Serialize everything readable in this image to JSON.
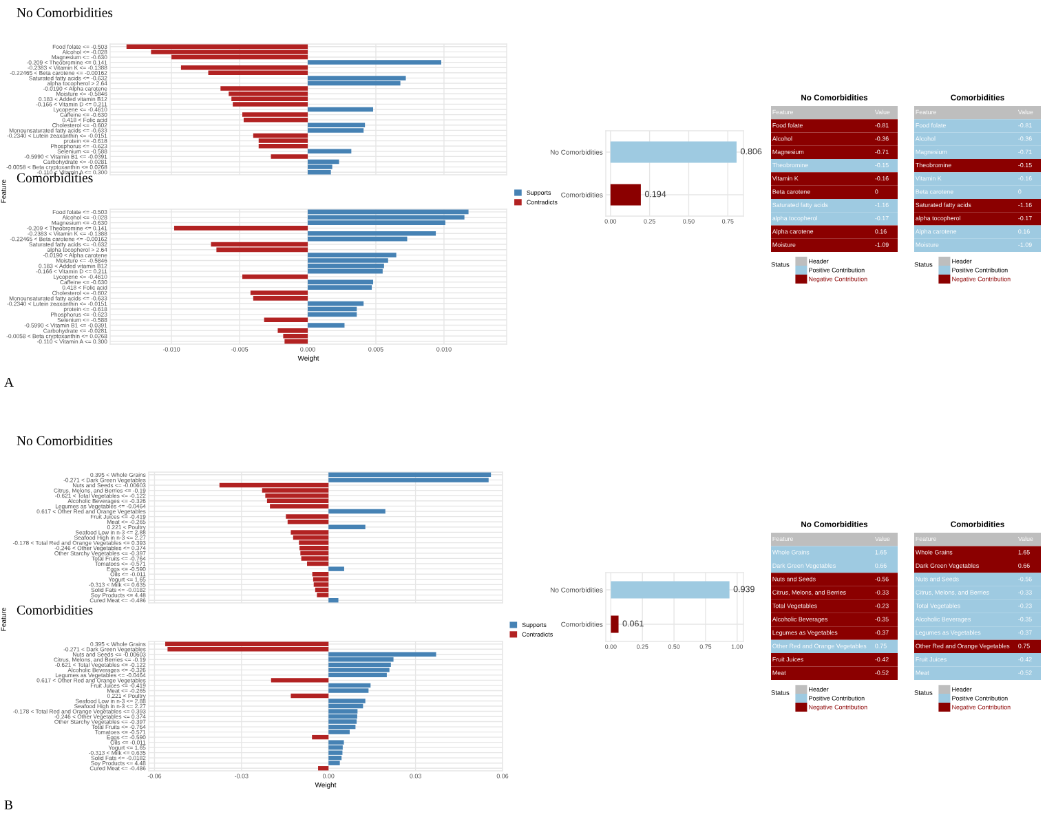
{
  "chart_data": [
    {
      "type": "bar",
      "orientation": "horizontal",
      "title": "No Comorbidities",
      "ylabel": "Feature",
      "tick_labels": "y",
      "grid": true,
      "categories": [
        "Food folate <= -0.503",
        "Alcohol <= -0.028",
        "Magnesium <= -0.630",
        "-0.209 < Theobromine <= 0.141",
        "-0.2383 < Vitamin K <= -0.1388",
        "-0.22465 < Beta carotene <= -0.00162",
        "Saturated fatty acids <= -0.632",
        "alpha tocopherol > 2.64",
        "-0.0190 < Alpha carotene",
        "Moisture <= -0.5846",
        "0.183 < Added vitamin B12",
        "-0.166 < Vitamin D <= 0.211",
        "Lycopene <= -0.4610",
        "Caffeine <= -0.630",
        "0.418 < Folic acid",
        "Cholesterol <= -0.602",
        "Monounsaturated fatty acids <= -0.633",
        "-0.2340 < Lutein zeaxanthin <= -0.0151",
        "protein <= -0.618",
        "Phosphorus <= -0.623",
        "Selenium <= -0.588",
        "-0.5990 < Vitamin B1 <= -0.0391",
        "Carbohydrate <= -0.0281",
        "-0.0058 < Beta cryptoxanthin <= 0.0268",
        "-0.110 < Vitamin A <= 0.300"
      ],
      "values": [
        -0.0133,
        -0.0115,
        -0.01,
        0.0098,
        -0.0093,
        -0.0073,
        0.0072,
        0.0068,
        -0.0064,
        -0.0058,
        -0.0056,
        -0.0055,
        0.0048,
        -0.0048,
        -0.0047,
        0.0042,
        0.0041,
        -0.004,
        -0.0036,
        -0.0036,
        0.0032,
        -0.0027,
        0.0023,
        0.0018,
        0.0017
      ],
      "colors": [
        "#b22222",
        "#b22222",
        "#b22222",
        "#4682b4",
        "#b22222",
        "#b22222",
        "#4682b4",
        "#4682b4",
        "#b22222",
        "#b22222",
        "#b22222",
        "#b22222",
        "#4682b4",
        "#b22222",
        "#b22222",
        "#4682b4",
        "#4682b4",
        "#b22222",
        "#b22222",
        "#b22222",
        "#4682b4",
        "#b22222",
        "#4682b4",
        "#4682b4",
        "#4682b4"
      ],
      "xlim": [
        -0.0145,
        0.0146
      ],
      "xticks": [
        -0.01,
        -0.005,
        0,
        0.005,
        0.01
      ]
    },
    {
      "type": "bar",
      "orientation": "horizontal",
      "title": "Comorbidities",
      "xlabel": "Weight",
      "grid": true,
      "legend": "right",
      "annotations": [
        "A"
      ],
      "categories": [
        "Food folate <= -0.503",
        "Alcohol <= -0.028",
        "Magnesium <= -0.630",
        "-0.209 < Theobromine <= 0.141",
        "-0.2383 < Vitamin K <= -0.1388",
        "-0.22465 < Beta carotene <= -0.00162",
        "Saturated fatty acids <= -0.632",
        "alpha tocopherol > 2.64",
        "-0.0190 < Alpha carotene",
        "Moisture <= -0.5846",
        "0.183 < Added vitamin B12",
        "-0.166 < Vitamin D <= 0.211",
        "Lycopene <= -0.4610",
        "Caffeine <= -0.630",
        "0.418 < Folic acid",
        "Cholesterol <= -0.602",
        "Monounsaturated fatty acids <= -0.633",
        "-0.2340 < Lutein zeaxanthin <= -0.0151",
        "protein <= -0.618",
        "Phosphorus <= -0.623",
        "Selenium <= -0.588",
        "-0.5990 < Vitamin B1 <= -0.0391",
        "Carbohydrate <= -0.0281",
        "-0.0058 < Beta cryptoxanthin <= 0.0268",
        "-0.110 < Vitamin A <= 0.300"
      ],
      "series": [
        {
          "name": "Supports",
          "color": "#4682b4",
          "values": [
            0.0118,
            0.0115,
            0.0101,
            null,
            0.0094,
            0.0073,
            null,
            null,
            0.0065,
            0.0059,
            0.0056,
            0.0055,
            null,
            0.0048,
            0.0047,
            null,
            null,
            0.0041,
            0.0036,
            0.0036,
            null,
            0.0027,
            null,
            null,
            null
          ]
        },
        {
          "name": "Contradicts",
          "color": "#b22222",
          "values": [
            null,
            null,
            null,
            -0.0098,
            null,
            null,
            -0.0071,
            -0.0067,
            null,
            null,
            null,
            null,
            -0.0048,
            null,
            null,
            -0.0042,
            -0.004,
            null,
            null,
            null,
            -0.0032,
            null,
            -0.0022,
            -0.0018,
            -0.0017
          ]
        }
      ],
      "xlim": [
        -0.0145,
        0.0146
      ],
      "xticks": [
        {
          "value": -0.01,
          "label": "-0.010"
        },
        {
          "value": -0.005,
          "label": "-0.005"
        },
        {
          "value": 0,
          "label": "0.000"
        },
        {
          "value": 0.005,
          "label": "0.005"
        },
        {
          "value": 0.01,
          "label": "0.010"
        }
      ]
    },
    {
      "type": "bar",
      "orientation": "horizontal",
      "grid": true,
      "data_labels": true,
      "categories": [
        "No Comorbidities",
        "Comorbidities"
      ],
      "values": [
        0.806,
        0.194
      ],
      "colors": [
        "#9ecae1",
        "#8b0000"
      ],
      "xlim": [
        -0.03,
        0.85
      ],
      "xticks": [
        {
          "value": 0,
          "label": "0.00"
        },
        {
          "value": 0.25,
          "label": "0.25"
        },
        {
          "value": 0.5,
          "label": "0.50"
        },
        {
          "value": 0.75,
          "label": "0.75"
        }
      ]
    },
    {
      "type": "other",
      "title": "No Comorbidities",
      "annotations": [
        "Feature",
        "Value"
      ],
      "legend": "bottom",
      "legend_title": "Status",
      "categories": [
        "Food folate",
        "Alcohol",
        "Magnesium",
        "Theobromine",
        "Vitamin K",
        "Beta carotene",
        "Saturated fatty acids",
        "alpha tocopherol",
        "Alpha carotene",
        "Moisture"
      ],
      "data_labels": true,
      "series": [
        {
          "name": "Header",
          "color": "#bebebe",
          "values": [
            null,
            null,
            null,
            null,
            null,
            null,
            null,
            null,
            null,
            null
          ]
        },
        {
          "name": "Positive Contribution",
          "color": "#9ecae1",
          "values": [
            null,
            null,
            null,
            -0.15,
            null,
            null,
            -1.16,
            -0.17,
            null,
            null
          ]
        },
        {
          "name": "Negative Contribution",
          "color": "#8b0000",
          "values": [
            -0.81,
            -0.36,
            -0.71,
            null,
            -0.16,
            0,
            null,
            null,
            0.16,
            -1.09
          ]
        }
      ]
    },
    {
      "type": "other",
      "title": "Comorbidities",
      "annotations": [
        "Feature",
        "Value"
      ],
      "legend": "bottom",
      "legend_title": "Status",
      "categories": [
        "Food folate",
        "Alcohol",
        "Magnesium",
        "Theobromine",
        "Vitamin K",
        "Beta carotene",
        "Saturated fatty acids",
        "alpha tocopherol",
        "Alpha carotene",
        "Moisture"
      ],
      "data_labels": true,
      "series": [
        {
          "name": "Header",
          "color": "#bebebe",
          "values": [
            null,
            null,
            null,
            null,
            null,
            null,
            null,
            null,
            null,
            null
          ]
        },
        {
          "name": "Positive Contribution",
          "color": "#9ecae1",
          "values": [
            -0.81,
            -0.36,
            -0.71,
            null,
            -0.16,
            0,
            null,
            null,
            0.16,
            -1.09
          ]
        },
        {
          "name": "Negative Contribution",
          "color": "#8b0000",
          "values": [
            null,
            null,
            null,
            -0.15,
            null,
            null,
            -1.16,
            -0.17,
            null,
            null
          ]
        }
      ]
    },
    {
      "type": "bar",
      "orientation": "horizontal",
      "title": "No Comorbidities",
      "ylabel": "Feature",
      "tick_labels": "y",
      "grid": true,
      "categories": [
        "0.395 < Whole Grains",
        "-0.271 < Dark Green Vegetables",
        "Nuts and Seeds <= -0.00603",
        "Citrus, Melons, and Berries <= -0.19",
        "-0.621 < Total Vegetables <= -0.122",
        "Alcoholic Beverages <= -0.326",
        "Legumes as Vegetables <= -0.0464",
        "0.617 < Other Red and Orange Vegetables",
        "Fruit Juices <= -0.419",
        "Meat <= -0.265",
        "0.221 < Poultry",
        "Seafood Low in n-3 <= 2.88",
        "Seafood High in n-3 <= 2.27",
        "-0.178 < Total Red and Orange Vegetables <= 0.393",
        "-0.246 < Other Vegetables <= 0.374",
        "Other Starchy Vegetables <= -0.397",
        "Total Fruits <= -0.764",
        "Tomatoes <= -0.571",
        "Eggs <= -0.590",
        "Oils <= -0.011",
        "Yogurt <= 1.65",
        "-0.313 < Milk <= 0.635",
        "Solid Fats <= -0.0182",
        "Soy Products <= 4.48",
        "Cured Meat <= -0.486"
      ],
      "values": [
        0.056,
        0.0552,
        -0.0376,
        -0.0229,
        -0.0218,
        -0.0212,
        -0.0202,
        0.0196,
        -0.0147,
        -0.0141,
        0.0127,
        -0.013,
        -0.0122,
        -0.0102,
        -0.01,
        -0.0097,
        -0.0094,
        -0.0074,
        0.0054,
        -0.0056,
        -0.0053,
        -0.0051,
        -0.0046,
        -0.004,
        0.0034
      ],
      "colors": [
        "#4682b4",
        "#4682b4",
        "#b22222",
        "#b22222",
        "#b22222",
        "#b22222",
        "#b22222",
        "#4682b4",
        "#b22222",
        "#b22222",
        "#4682b4",
        "#b22222",
        "#b22222",
        "#b22222",
        "#b22222",
        "#b22222",
        "#b22222",
        "#b22222",
        "#4682b4",
        "#b22222",
        "#b22222",
        "#b22222",
        "#b22222",
        "#b22222",
        "#4682b4"
      ],
      "xlim": [
        -0.062,
        0.06
      ],
      "xticks": [
        -0.06,
        -0.03,
        0,
        0.03,
        0.06
      ]
    },
    {
      "type": "bar",
      "orientation": "horizontal",
      "title": "Comorbidities",
      "xlabel": "Weight",
      "grid": true,
      "legend": "right",
      "annotations": [
        "B"
      ],
      "categories": [
        "0.395 < Whole Grains",
        "-0.271 < Dark Green Vegetables",
        "Nuts and Seeds <= -0.00603",
        "Citrus, Melons, and Berries <= -0.19",
        "-0.621 < Total Vegetables <= -0.122",
        "Alcoholic Beverages <= -0.326",
        "Legumes as Vegetables <= -0.0464",
        "0.617 < Other Red and Orange Vegetables",
        "Fruit Juices <= -0.419",
        "Meat <= -0.265",
        "0.221 < Poultry",
        "Seafood Low in n-3 <= 2.88",
        "Seafood High in n-3 <= 2.27",
        "-0.178 < Total Red and Orange Vegetables <= 0.393",
        "-0.246 < Other Vegetables <= 0.374",
        "Other Starchy Vegetables <= -0.397",
        "Total Fruits <= -0.764",
        "Tomatoes <= -0.571",
        "Eggs <= -0.590",
        "Oils <= -0.011",
        "Yogurt <= 1.65",
        "-0.313 < Milk <= 0.635",
        "Solid Fats <= -0.0182",
        "Soy Products <= 4.48",
        "Cured Meat <= -0.486"
      ],
      "series": [
        {
          "name": "Supports",
          "color": "#4682b4",
          "values": [
            null,
            null,
            0.0371,
            0.0224,
            0.0215,
            0.021,
            0.0201,
            null,
            0.0145,
            0.0138,
            null,
            0.0127,
            0.0119,
            0.01,
            0.0099,
            0.0097,
            0.0093,
            0.0073,
            null,
            0.0053,
            0.0049,
            0.0048,
            0.0045,
            0.0039,
            null
          ]
        },
        {
          "name": "Contradicts",
          "color": "#b22222",
          "values": [
            -0.0563,
            -0.0555,
            null,
            null,
            null,
            null,
            null,
            -0.0198,
            null,
            null,
            -0.013,
            null,
            null,
            null,
            null,
            null,
            null,
            null,
            -0.0057,
            null,
            null,
            null,
            null,
            null,
            -0.0036
          ]
        }
      ],
      "xlim": [
        -0.062,
        0.06
      ],
      "xticks": [
        {
          "value": -0.06,
          "label": "-0.06"
        },
        {
          "value": -0.03,
          "label": "-0.03"
        },
        {
          "value": 0,
          "label": "0.00"
        },
        {
          "value": 0.03,
          "label": "0.03"
        },
        {
          "value": 0.06,
          "label": "0.06"
        }
      ]
    },
    {
      "type": "bar",
      "orientation": "horizontal",
      "grid": true,
      "data_labels": true,
      "categories": [
        "No Comorbidities",
        "Comorbidities"
      ],
      "values": [
        0.939,
        0.061
      ],
      "colors": [
        "#9ecae1",
        "#8b0000"
      ],
      "xlim": [
        -0.04,
        1.05
      ],
      "xticks": [
        {
          "value": 0,
          "label": "0.00"
        },
        {
          "value": 0.25,
          "label": "0.25"
        },
        {
          "value": 0.5,
          "label": "0.50"
        },
        {
          "value": 0.75,
          "label": "0.75"
        },
        {
          "value": 1,
          "label": "1.00"
        }
      ]
    },
    {
      "type": "other",
      "title": "No Comorbidities",
      "annotations": [
        "Feature",
        "Value"
      ],
      "legend": "bottom",
      "legend_title": "Status",
      "categories": [
        "Whole Grains",
        "Dark Green Vegetables",
        "Nuts and Seeds",
        "Citrus, Melons, and Berries",
        "Total Vegetables",
        "Alcoholic Beverages",
        "Legumes as Vegetables",
        "Other Red and Orange Vegetables",
        "Fruit Juices",
        "Meat"
      ],
      "data_labels": true,
      "series": [
        {
          "name": "Header",
          "color": "#bebebe",
          "values": [
            null,
            null,
            null,
            null,
            null,
            null,
            null,
            null,
            null,
            null
          ]
        },
        {
          "name": "Positive Contribution",
          "color": "#9ecae1",
          "values": [
            1.65,
            0.66,
            null,
            null,
            null,
            null,
            null,
            0.75,
            null,
            null
          ]
        },
        {
          "name": "Negative Contribution",
          "color": "#8b0000",
          "values": [
            null,
            null,
            -0.56,
            -0.33,
            -0.23,
            -0.35,
            -0.37,
            null,
            -0.42,
            -0.52
          ]
        }
      ]
    },
    {
      "type": "other",
      "title": "Comorbidities",
      "annotations": [
        "Feature",
        "Value"
      ],
      "legend": "bottom",
      "legend_title": "Status",
      "categories": [
        "Whole Grains",
        "Dark Green Vegetables",
        "Nuts and Seeds",
        "Citrus, Melons, and Berries",
        "Total Vegetables",
        "Alcoholic Beverages",
        "Legumes as Vegetables",
        "Other Red and Orange Vegetables",
        "Fruit Juices",
        "Meat"
      ],
      "data_labels": true,
      "series": [
        {
          "name": "Header",
          "color": "#bebebe",
          "values": [
            null,
            null,
            null,
            null,
            null,
            null,
            null,
            null,
            null,
            null
          ]
        },
        {
          "name": "Positive Contribution",
          "color": "#9ecae1",
          "values": [
            null,
            null,
            -0.56,
            -0.33,
            -0.23,
            -0.35,
            -0.37,
            null,
            -0.42,
            -0.52
          ]
        },
        {
          "name": "Negative Contribution",
          "color": "#8b0000",
          "values": [
            1.65,
            0.66,
            null,
            null,
            null,
            null,
            null,
            0.75,
            null,
            null
          ]
        }
      ]
    }
  ]
}
